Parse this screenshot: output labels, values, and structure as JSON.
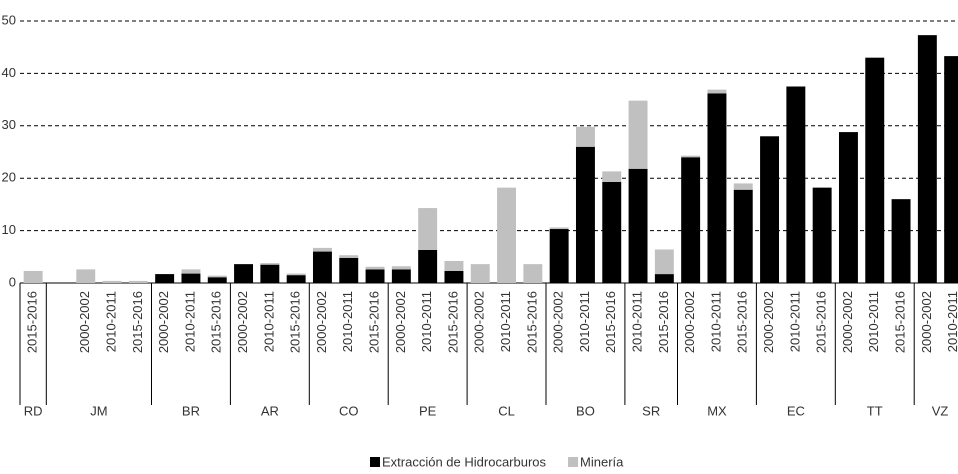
{
  "chart_data": {
    "type": "bar",
    "stacked": true,
    "groups": [
      {
        "name": "RD",
        "categories": [
          "2015-2016"
        ]
      },
      {
        "name": "JM",
        "categories": [
          null,
          "2000-2002",
          "2010-2011",
          "2015-2016"
        ]
      },
      {
        "name": "BR",
        "categories": [
          "2000-2002",
          "2010-2011",
          "2015-2016"
        ]
      },
      {
        "name": "AR",
        "categories": [
          "2000-2002",
          "2010-2011",
          "2015-2016"
        ]
      },
      {
        "name": "CO",
        "categories": [
          "2000-2002",
          "2010-2011",
          "2015-2016"
        ]
      },
      {
        "name": "PE",
        "categories": [
          "2000-2002",
          "2010-2011",
          "2015-2016"
        ]
      },
      {
        "name": "CL",
        "categories": [
          "2000-2002",
          "2010-2011",
          "2015-2016"
        ]
      },
      {
        "name": "BO",
        "categories": [
          "2000-2002",
          "2010-2011",
          "2015-2016"
        ]
      },
      {
        "name": "SR",
        "categories": [
          "2010-2011",
          "2015-2016"
        ]
      },
      {
        "name": "MX",
        "categories": [
          "2000-2002",
          "2010-2011",
          "2015-2016"
        ]
      },
      {
        "name": "EC",
        "categories": [
          "2000-2002",
          "2010-2011",
          "2015-2016"
        ]
      },
      {
        "name": "TT",
        "categories": [
          "2000-2002",
          "2010-2011",
          "2015-2016"
        ]
      },
      {
        "name": "VZ",
        "categories": [
          "2000-2002",
          "2010-2011"
        ]
      }
    ],
    "series": [
      {
        "name": "Extracción de Hidrocarburos",
        "color": "#000000",
        "values": [
          0,
          null,
          0,
          0,
          0,
          1.7,
          1.8,
          1.1,
          3.6,
          3.5,
          1.5,
          6,
          4.8,
          2.6,
          2.6,
          6.3,
          2.3,
          0,
          0,
          0,
          10.3,
          26,
          19.3,
          21.8,
          1.7,
          24,
          36.2,
          17.8,
          28,
          37.5,
          18.2,
          28.8,
          43,
          16,
          47.3,
          43.3
        ]
      },
      {
        "name": "Minería",
        "color": "#c0c0c0",
        "values": [
          2.3,
          null,
          2.6,
          0.4,
          0.4,
          0,
          0.8,
          0.3,
          0,
          0.3,
          0.3,
          0.7,
          0.5,
          0.5,
          0.6,
          8,
          1.9,
          3.6,
          18.2,
          3.6,
          0.3,
          3.8,
          2,
          13,
          4.7,
          0.3,
          0.7,
          1.2,
          0,
          0,
          0,
          0,
          0,
          0,
          0,
          0
        ]
      }
    ],
    "ylim": [
      0,
      50
    ],
    "yticks": [
      0,
      10,
      20,
      30,
      40,
      50
    ],
    "grid": true,
    "legend": "bottom"
  }
}
